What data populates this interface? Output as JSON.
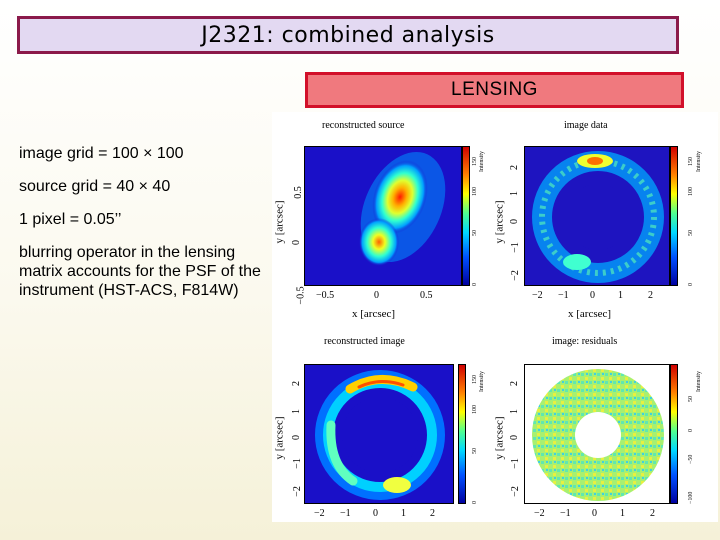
{
  "title": "J2321: combined analysis",
  "lensing_label": "LENSING",
  "notes": [
    "image grid = 100 × 100",
    "source grid = 40 × 40",
    "1 pixel = 0.05’’",
    "blurring operator in the lensing matrix accounts for the PSF of the instrument (HST-ACS, F814W)"
  ],
  "figure": {
    "panels": {
      "tl": {
        "title": "reconstructed source",
        "xlabel": "x [arcsec]",
        "ylabel": "y [arcsec]",
        "xticks": [
          "−0.5",
          "0",
          "0.5"
        ],
        "yticks": [
          "−0.5",
          "0",
          "0.5"
        ],
        "cbar_label": "Intensity",
        "cbar_ticks": [
          "0",
          "50",
          "100",
          "150"
        ]
      },
      "tr": {
        "title": "image data",
        "xlabel": "x [arcsec]",
        "ylabel": "y [arcsec]",
        "xticks": [
          "−2",
          "−1",
          "0",
          "1",
          "2"
        ],
        "yticks": [
          "−2",
          "−1",
          "0",
          "1",
          "2"
        ],
        "cbar_label": "Intensity",
        "cbar_ticks": [
          "0",
          "50",
          "100",
          "150"
        ]
      },
      "bl": {
        "title": "reconstructed image",
        "xlabel": "",
        "ylabel": "y [arcsec]",
        "xticks": [
          "−2",
          "−1",
          "0",
          "1",
          "2"
        ],
        "yticks": [
          "−2",
          "−1",
          "0",
          "1",
          "2"
        ],
        "cbar_label": "Intensity",
        "cbar_ticks": [
          "0",
          "50",
          "100",
          "150"
        ]
      },
      "br": {
        "title": "image: residuals",
        "xlabel": "",
        "ylabel": "y [arcsec]",
        "xticks": [
          "−2",
          "−1",
          "0",
          "1",
          "2"
        ],
        "yticks": [
          "−2",
          "−1",
          "0",
          "1",
          "2"
        ],
        "cbar_label": "Intensity",
        "cbar_ticks": [
          "−100",
          "−50",
          "0",
          "50"
        ]
      }
    }
  }
}
